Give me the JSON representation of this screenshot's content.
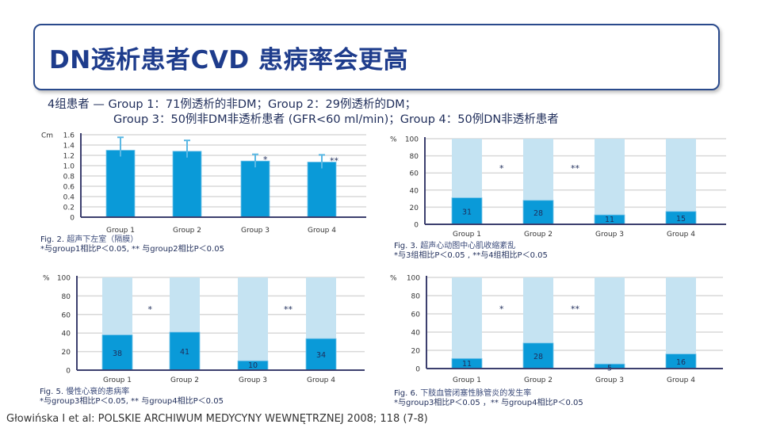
{
  "title": "DN透析患者CVD 患病率会更高",
  "subtitle": {
    "line1": "4组患者 — Group 1：71例透析的非DM；Group 2：29例透析的DM；",
    "line2": "Group 3：50例非DM非透析患者 (GFR<60 ml/min)；Group 4：50例DN非透析患者"
  },
  "colors": {
    "bar": "#0a9ad8",
    "bar_bg": "#c5e3f2",
    "axis": "#3c3f6e",
    "grid": "#d8d8d8",
    "title": "#1e3c8c"
  },
  "chart_data": [
    {
      "type": "bar",
      "ylabel": "Cm",
      "categories": [
        "Group 1",
        "Group 2",
        "Group 3",
        "Group 4"
      ],
      "values": [
        1.3,
        1.28,
        1.09,
        1.07
      ],
      "error_upper": [
        1.55,
        1.49,
        1.22,
        1.21
      ],
      "yticks": [
        "0",
        "0.2",
        "0.4",
        "0.6",
        "0.8",
        "1.0",
        "1.2",
        "1.4",
        "1.6"
      ],
      "ylim": [
        0,
        1.6
      ],
      "grid": true,
      "annotations": [
        {
          "group": 2,
          "text": "*"
        },
        {
          "group": 3,
          "text": "**"
        }
      ],
      "caption": {
        "fig": "Fig. 2.",
        "title": "超声下左室（隔膜）",
        "note": "*与group1相比P＜0.05,  ** 与group2相比P＜0.05"
      }
    },
    {
      "type": "bar",
      "ylabel": "%",
      "categories": [
        "Group 1",
        "Group 2",
        "Group 3",
        "Group 4"
      ],
      "values": [
        31,
        28,
        11,
        15
      ],
      "yticks": [
        "0",
        "20",
        "40",
        "60",
        "80",
        "100"
      ],
      "ylim": [
        0,
        100
      ],
      "grid": true,
      "annotations": [
        {
          "between": 0,
          "text": "*"
        },
        {
          "between": 1,
          "text": "**"
        }
      ],
      "caption": {
        "fig": "Fig. 3.",
        "title": "超声心动图中心肌收缩紊乱",
        "note": " *与3组相比P＜0.05 ,  **与4组相比P＜0.05"
      }
    },
    {
      "type": "bar",
      "ylabel": "%",
      "categories": [
        "Group 1",
        "Group 2",
        "Group 3",
        "Group 4"
      ],
      "values": [
        38,
        41,
        10,
        34
      ],
      "yticks": [
        "0",
        "20",
        "40",
        "60",
        "80",
        "100"
      ],
      "ylim": [
        0,
        100
      ],
      "grid": true,
      "annotations": [
        {
          "between": 0,
          "text": "*"
        },
        {
          "between": 2,
          "text": "**"
        }
      ],
      "caption": {
        "fig": "Fig. 5.",
        "title": "慢性心衰的患病率",
        "note": "*与group3相比P＜0.05, ** 与group4相比P＜0.05"
      }
    },
    {
      "type": "bar",
      "ylabel": "%",
      "categories": [
        "Group 1",
        "Group 2",
        "Group 3",
        "Group 4"
      ],
      "values": [
        11,
        28,
        5,
        16
      ],
      "yticks": [
        "0",
        "20",
        "40",
        "60",
        "80",
        "100"
      ],
      "ylim": [
        0,
        100
      ],
      "grid": true,
      "annotations": [
        {
          "between": 0,
          "text": "*"
        },
        {
          "between": 1,
          "text": "**"
        }
      ],
      "caption": {
        "fig": "Fig. 6.",
        "title": "下肢血管闭塞性脉管炎的发生率",
        "note": " *与group3相比P＜0.05 ，** 与group4相比P＜0.05"
      }
    }
  ],
  "citation": "Głowińska I  et al: POLSKIE ARCHIWUM MEDYCYNY WEWNĘTRZNEJ 2008; 118 (7-8)"
}
